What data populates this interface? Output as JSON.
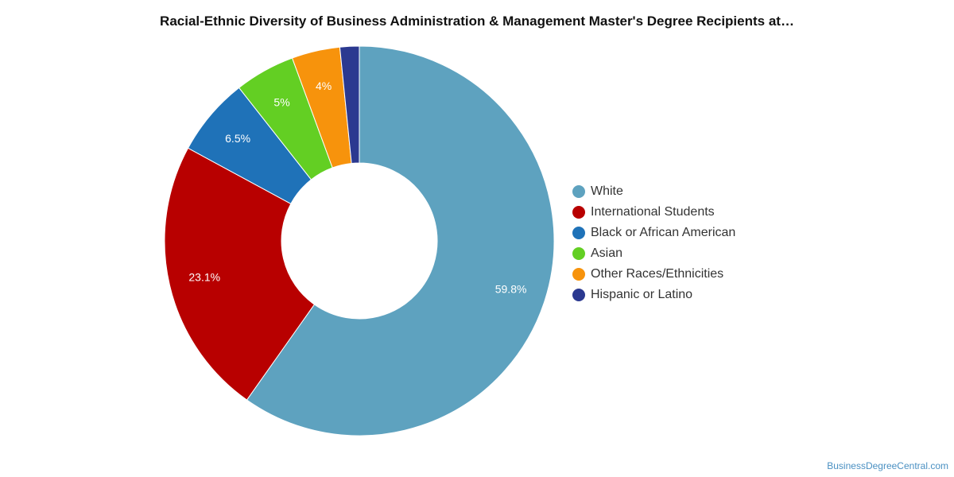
{
  "chart_data": {
    "type": "pie",
    "variant": "donut",
    "title": "Racial-Ethnic Diversity of Business Administration & Management Master's Degree Recipients at…",
    "slices": [
      {
        "name": "White",
        "value": 59.8,
        "label": "59.8%",
        "color": "#5ea2bf"
      },
      {
        "name": "International Students",
        "value": 23.1,
        "label": "23.1%",
        "color": "#b80000"
      },
      {
        "name": "Black or African American",
        "value": 6.5,
        "label": "6.5%",
        "color": "#1f72b8"
      },
      {
        "name": "Asian",
        "value": 5,
        "label": "5%",
        "color": "#63cf23"
      },
      {
        "name": "Other Races/Ethnicities",
        "value": 4,
        "label": "4%",
        "color": "#f7930c"
      },
      {
        "name": "Hispanic or Latino",
        "value": 1.6,
        "label": "",
        "color": "#2b3990"
      }
    ],
    "legend": {
      "position": "right",
      "items": [
        {
          "label": "White",
          "color": "#5ea2bf"
        },
        {
          "label": "International Students",
          "color": "#b80000"
        },
        {
          "label": "Black or African American",
          "color": "#1f72b8"
        },
        {
          "label": "Asian",
          "color": "#63cf23"
        },
        {
          "label": "Other Races/Ethnicities",
          "color": "#f7930c"
        },
        {
          "label": "Hispanic or Latino",
          "color": "#2b3990"
        }
      ]
    }
  },
  "credit": "BusinessDegreeCentral.com"
}
